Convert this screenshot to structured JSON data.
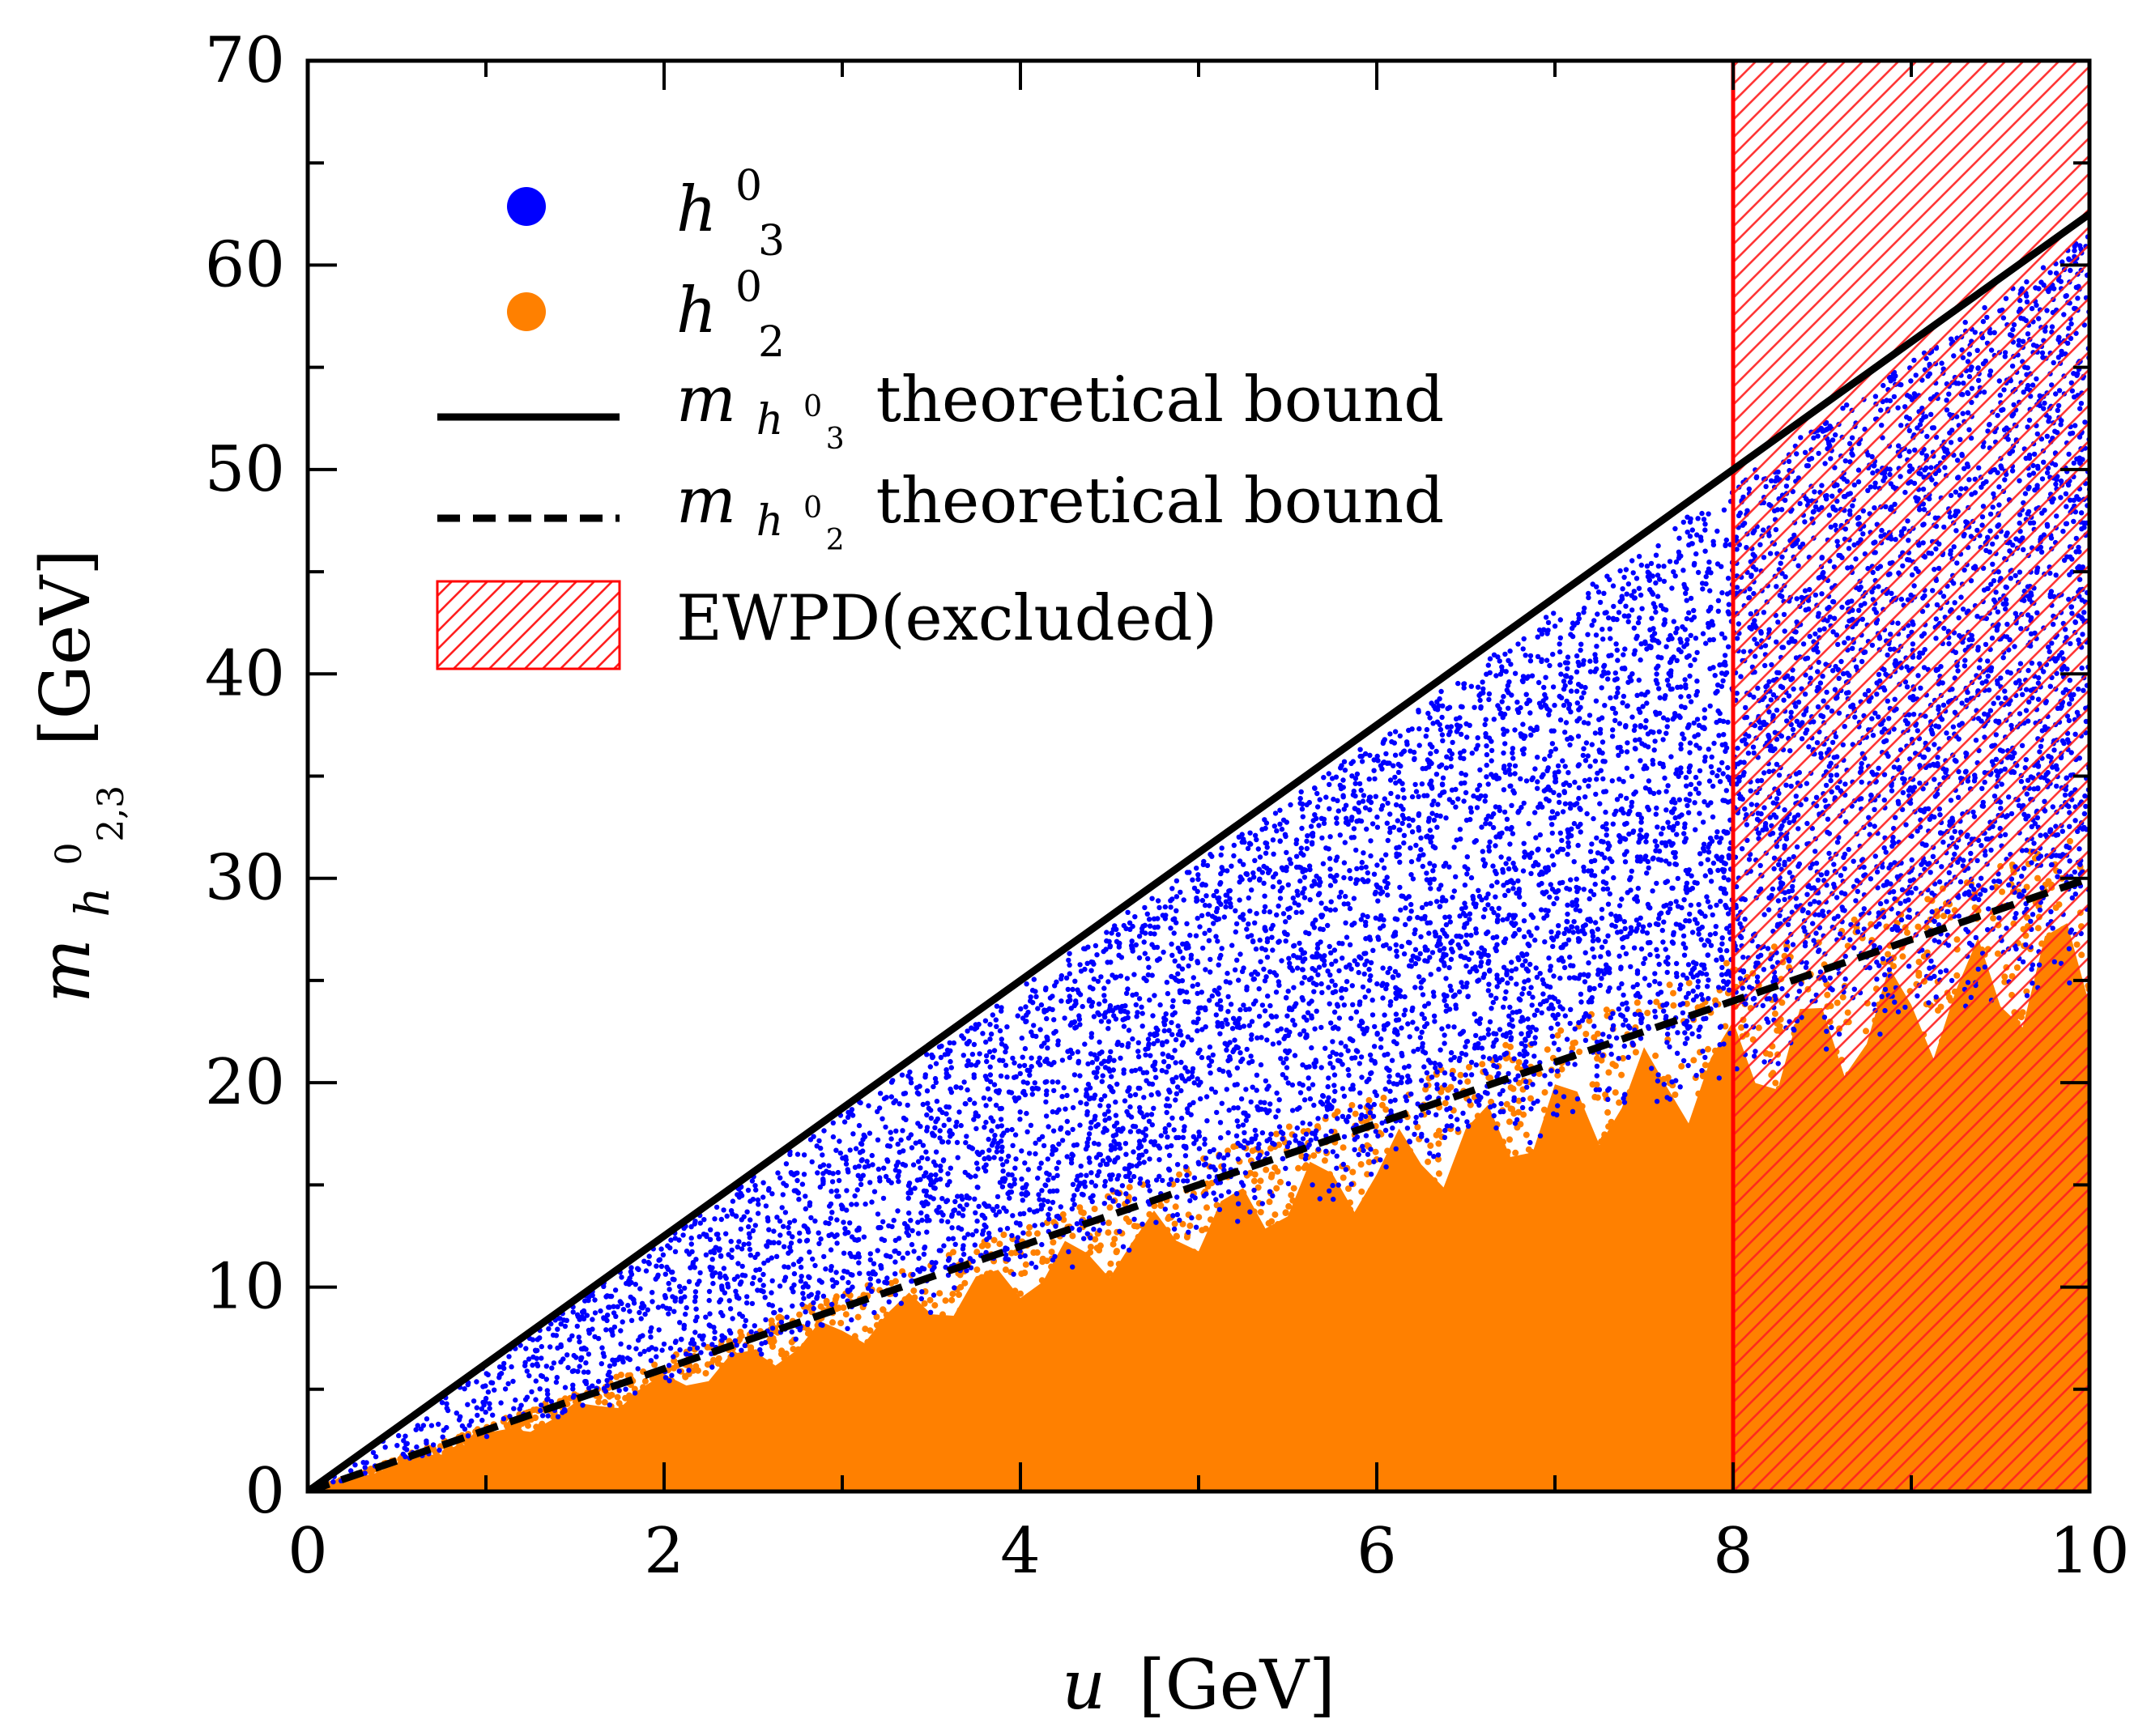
{
  "chart_data": {
    "type": "scatter",
    "title": "",
    "xlabel": {
      "var": "u",
      "unit": "[GeV]"
    },
    "ylabel": {
      "var": "m",
      "sub_base": "h",
      "sub_sup": "0",
      "sub_sub": "2,3",
      "unit": "[GeV]"
    },
    "xlim": [
      0,
      10
    ],
    "ylim": [
      0,
      70
    ],
    "x_ticks": [
      0,
      2,
      4,
      6,
      8,
      10
    ],
    "y_ticks": [
      0,
      10,
      20,
      30,
      40,
      50,
      60,
      70
    ],
    "x_tick_labels": [
      "0",
      "2",
      "4",
      "6",
      "8",
      "10"
    ],
    "y_tick_labels": [
      "0",
      "10",
      "20",
      "30",
      "40",
      "50",
      "60",
      "70"
    ],
    "grid": false,
    "legend_position": "top-left",
    "series": [
      {
        "name": "h3",
        "label": {
          "base": "h",
          "sup": "0",
          "sub": "3"
        },
        "kind": "scatter",
        "color": "#0000ff",
        "lower_bound_slope": 3.0,
        "upper_bound_slope": 6.25
      },
      {
        "name": "h2",
        "label": {
          "base": "h",
          "sup": "0",
          "sub": "2"
        },
        "kind": "scatter",
        "color": "#ff8000",
        "lower_bound_slope": 0.0,
        "upper_bound_slope": 2.9
      },
      {
        "name": "mh3 theoretical bound",
        "label": {
          "base": "m",
          "sub_base": "h",
          "sub_sup": "0",
          "sub_sub": "3",
          "text": "theoretical bound"
        },
        "kind": "line",
        "style": "solid",
        "color": "#000000",
        "x": [
          0,
          10
        ],
        "y": [
          0,
          62.5
        ]
      },
      {
        "name": "mh2 theoretical bound",
        "label": {
          "base": "m",
          "sub_base": "h",
          "sub_sup": "0",
          "sub_sub": "2",
          "text": "theoretical bound"
        },
        "kind": "line",
        "style": "dashed",
        "color": "#000000",
        "x": [
          0,
          10
        ],
        "y": [
          0,
          30
        ]
      },
      {
        "name": "EWPD (excluded)",
        "label": {
          "text": "EWPD(excluded)"
        },
        "kind": "hatched-region",
        "color": "#ff0000",
        "x_range": [
          8,
          10
        ],
        "y_range": [
          0,
          70
        ]
      }
    ]
  }
}
